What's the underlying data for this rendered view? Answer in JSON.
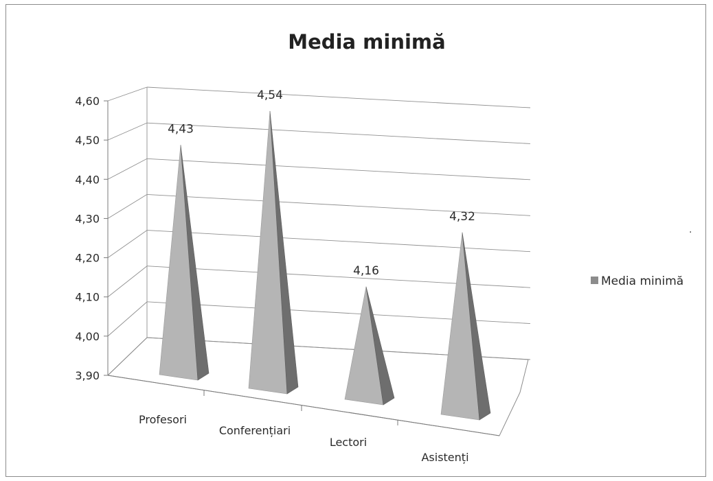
{
  "chart_data": {
    "type": "bar",
    "title": "Media minimă",
    "categories": [
      "Profesori",
      "Conferențiari",
      "Lectori",
      "Asistenți"
    ],
    "series": [
      {
        "name": "Media minimă",
        "values": [
          4.43,
          4.54,
          4.16,
          4.32
        ],
        "labels": [
          "4,43",
          "4,54",
          "4,16",
          "4,32"
        ]
      }
    ],
    "yticks": [
      "3,90",
      "4,00",
      "4,10",
      "4,20",
      "4,30",
      "4,40",
      "4,50",
      "4,60"
    ],
    "ylim": [
      3.9,
      4.6
    ],
    "xlabel": "",
    "ylabel": "",
    "grid": true,
    "legend": "right",
    "bar_shape": "pyramid",
    "colors": {
      "bar_light": "#b5b5b5",
      "bar_dark": "#6e6e6e",
      "legend_swatch": "#8c8c8c"
    }
  }
}
